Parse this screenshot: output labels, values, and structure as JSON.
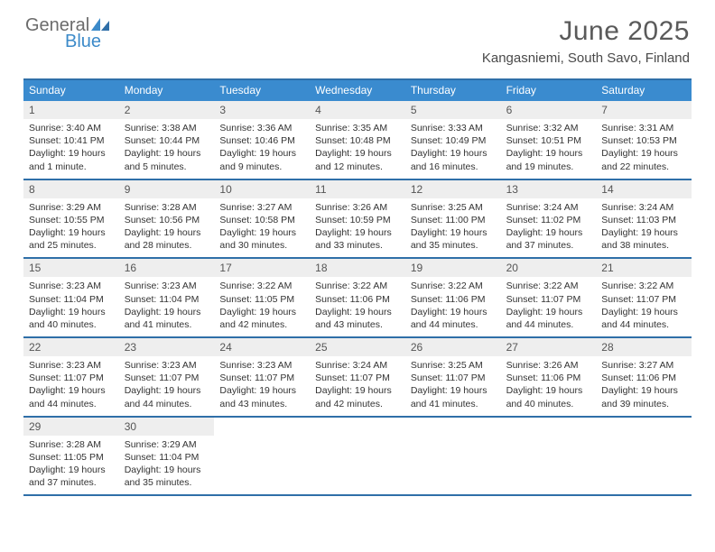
{
  "brand": {
    "part1": "General",
    "part2": "Blue"
  },
  "title": "June 2025",
  "location": "Kangasniemi, South Savo, Finland",
  "colors": {
    "header_bar": "#3a8bcf",
    "rule": "#2f6fa8",
    "daynum_bg": "#eeeeee",
    "logo_gray": "#6b6b6b",
    "logo_blue": "#3c8ac9"
  },
  "dayNames": [
    "Sunday",
    "Monday",
    "Tuesday",
    "Wednesday",
    "Thursday",
    "Friday",
    "Saturday"
  ],
  "weeks": [
    [
      {
        "n": "1",
        "sunrise": "3:40 AM",
        "sunset": "10:41 PM",
        "daylight": "19 hours and 1 minute."
      },
      {
        "n": "2",
        "sunrise": "3:38 AM",
        "sunset": "10:44 PM",
        "daylight": "19 hours and 5 minutes."
      },
      {
        "n": "3",
        "sunrise": "3:36 AM",
        "sunset": "10:46 PM",
        "daylight": "19 hours and 9 minutes."
      },
      {
        "n": "4",
        "sunrise": "3:35 AM",
        "sunset": "10:48 PM",
        "daylight": "19 hours and 12 minutes."
      },
      {
        "n": "5",
        "sunrise": "3:33 AM",
        "sunset": "10:49 PM",
        "daylight": "19 hours and 16 minutes."
      },
      {
        "n": "6",
        "sunrise": "3:32 AM",
        "sunset": "10:51 PM",
        "daylight": "19 hours and 19 minutes."
      },
      {
        "n": "7",
        "sunrise": "3:31 AM",
        "sunset": "10:53 PM",
        "daylight": "19 hours and 22 minutes."
      }
    ],
    [
      {
        "n": "8",
        "sunrise": "3:29 AM",
        "sunset": "10:55 PM",
        "daylight": "19 hours and 25 minutes."
      },
      {
        "n": "9",
        "sunrise": "3:28 AM",
        "sunset": "10:56 PM",
        "daylight": "19 hours and 28 minutes."
      },
      {
        "n": "10",
        "sunrise": "3:27 AM",
        "sunset": "10:58 PM",
        "daylight": "19 hours and 30 minutes."
      },
      {
        "n": "11",
        "sunrise": "3:26 AM",
        "sunset": "10:59 PM",
        "daylight": "19 hours and 33 minutes."
      },
      {
        "n": "12",
        "sunrise": "3:25 AM",
        "sunset": "11:00 PM",
        "daylight": "19 hours and 35 minutes."
      },
      {
        "n": "13",
        "sunrise": "3:24 AM",
        "sunset": "11:02 PM",
        "daylight": "19 hours and 37 minutes."
      },
      {
        "n": "14",
        "sunrise": "3:24 AM",
        "sunset": "11:03 PM",
        "daylight": "19 hours and 38 minutes."
      }
    ],
    [
      {
        "n": "15",
        "sunrise": "3:23 AM",
        "sunset": "11:04 PM",
        "daylight": "19 hours and 40 minutes."
      },
      {
        "n": "16",
        "sunrise": "3:23 AM",
        "sunset": "11:04 PM",
        "daylight": "19 hours and 41 minutes."
      },
      {
        "n": "17",
        "sunrise": "3:22 AM",
        "sunset": "11:05 PM",
        "daylight": "19 hours and 42 minutes."
      },
      {
        "n": "18",
        "sunrise": "3:22 AM",
        "sunset": "11:06 PM",
        "daylight": "19 hours and 43 minutes."
      },
      {
        "n": "19",
        "sunrise": "3:22 AM",
        "sunset": "11:06 PM",
        "daylight": "19 hours and 44 minutes."
      },
      {
        "n": "20",
        "sunrise": "3:22 AM",
        "sunset": "11:07 PM",
        "daylight": "19 hours and 44 minutes."
      },
      {
        "n": "21",
        "sunrise": "3:22 AM",
        "sunset": "11:07 PM",
        "daylight": "19 hours and 44 minutes."
      }
    ],
    [
      {
        "n": "22",
        "sunrise": "3:23 AM",
        "sunset": "11:07 PM",
        "daylight": "19 hours and 44 minutes."
      },
      {
        "n": "23",
        "sunrise": "3:23 AM",
        "sunset": "11:07 PM",
        "daylight": "19 hours and 44 minutes."
      },
      {
        "n": "24",
        "sunrise": "3:23 AM",
        "sunset": "11:07 PM",
        "daylight": "19 hours and 43 minutes."
      },
      {
        "n": "25",
        "sunrise": "3:24 AM",
        "sunset": "11:07 PM",
        "daylight": "19 hours and 42 minutes."
      },
      {
        "n": "26",
        "sunrise": "3:25 AM",
        "sunset": "11:07 PM",
        "daylight": "19 hours and 41 minutes."
      },
      {
        "n": "27",
        "sunrise": "3:26 AM",
        "sunset": "11:06 PM",
        "daylight": "19 hours and 40 minutes."
      },
      {
        "n": "28",
        "sunrise": "3:27 AM",
        "sunset": "11:06 PM",
        "daylight": "19 hours and 39 minutes."
      }
    ],
    [
      {
        "n": "29",
        "sunrise": "3:28 AM",
        "sunset": "11:05 PM",
        "daylight": "19 hours and 37 minutes."
      },
      {
        "n": "30",
        "sunrise": "3:29 AM",
        "sunset": "11:04 PM",
        "daylight": "19 hours and 35 minutes."
      },
      null,
      null,
      null,
      null,
      null
    ]
  ],
  "labels": {
    "sunrise": "Sunrise: ",
    "sunset": "Sunset: ",
    "daylight": "Daylight: "
  }
}
